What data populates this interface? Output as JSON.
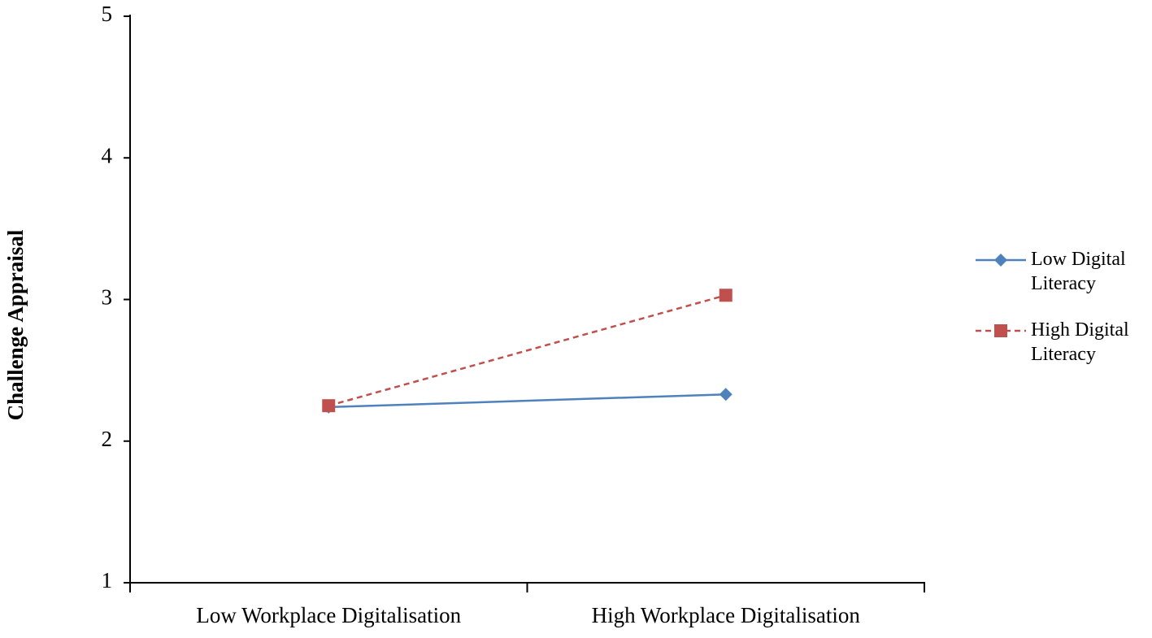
{
  "chart_data": {
    "type": "line",
    "y_label": "Challenge Appraisal",
    "categories": [
      "Low Workplace Digitalisation",
      "High Workplace Digitalisation"
    ],
    "ylim": [
      1,
      5
    ],
    "yticks": [
      1,
      2,
      3,
      4,
      5
    ],
    "legend_position": "right",
    "series": [
      {
        "name": "Low Digital Literacy",
        "color": "#4f81bd",
        "line_style": "solid",
        "marker": "diamond",
        "values": [
          2.24,
          2.33
        ]
      },
      {
        "name": "High Digital Literacy",
        "color": "#c0504d",
        "line_style": "dashed",
        "marker": "square",
        "values": [
          2.25,
          3.03
        ]
      }
    ]
  }
}
